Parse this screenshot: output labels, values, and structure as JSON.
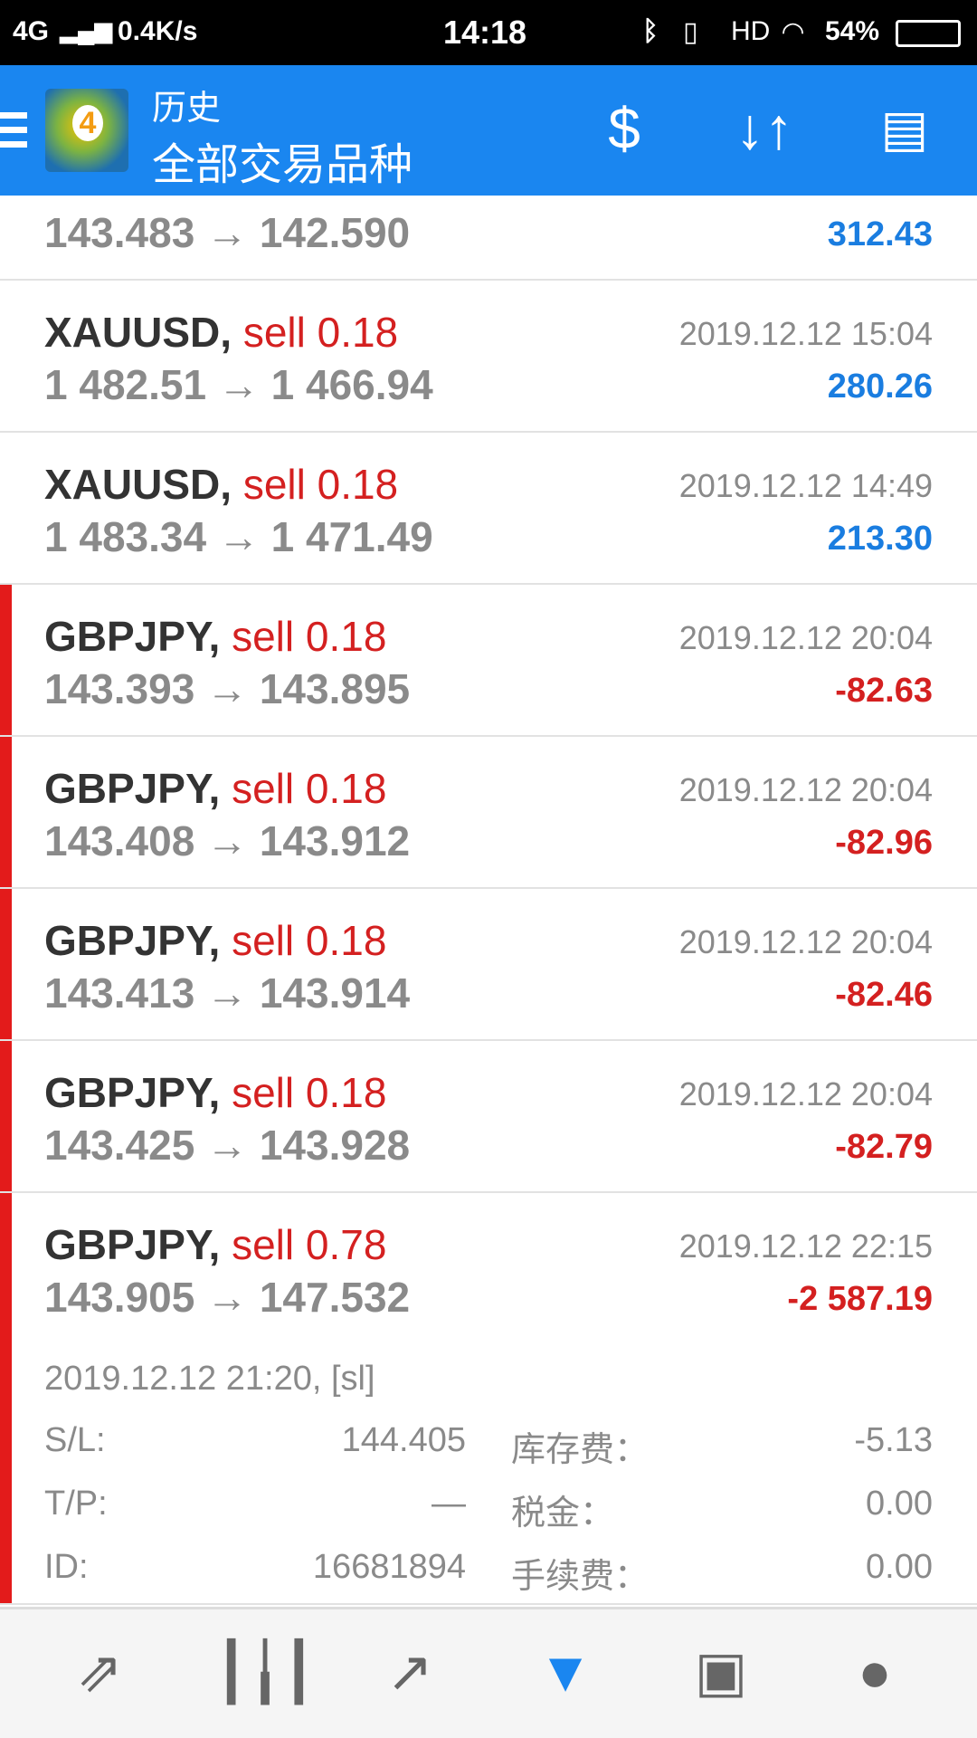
{
  "status_bar": {
    "network": "4G",
    "speed": "0.4K/s",
    "time": "14:18",
    "hd": "HD",
    "battery": "54%"
  },
  "header": {
    "title": "历史",
    "subtitle": "全部交易品种",
    "icons": [
      "menu-icon",
      "mt4-logo",
      "currency-exchange-icon",
      "sort-icon",
      "calendar-icon"
    ]
  },
  "partial_row": {
    "price": "143.483 → 142.590",
    "profit": "312.43"
  },
  "deals": [
    {
      "symbol": "XAUUSD,",
      "type": "sell 0.18",
      "price": "1 482.51 → 1 466.94",
      "date": "2019.12.12 15:04",
      "profit": "280.26",
      "result": "profit"
    },
    {
      "symbol": "XAUUSD,",
      "type": "sell 0.18",
      "price": "1 483.34 → 1 471.49",
      "date": "2019.12.12 14:49",
      "profit": "213.30",
      "result": "profit"
    },
    {
      "symbol": "GBPJPY,",
      "type": "sell 0.18",
      "price": "143.393 → 143.895",
      "date": "2019.12.12 20:04",
      "profit": "-82.63",
      "result": "loss"
    },
    {
      "symbol": "GBPJPY,",
      "type": "sell 0.18",
      "price": "143.408 → 143.912",
      "date": "2019.12.12 20:04",
      "profit": "-82.96",
      "result": "loss"
    },
    {
      "symbol": "GBPJPY,",
      "type": "sell 0.18",
      "price": "143.413 → 143.914",
      "date": "2019.12.12 20:04",
      "profit": "-82.46",
      "result": "loss"
    },
    {
      "symbol": "GBPJPY,",
      "type": "sell 0.18",
      "price": "143.425 → 143.928",
      "date": "2019.12.12 20:04",
      "profit": "-82.79",
      "result": "loss"
    },
    {
      "symbol": "GBPJPY,",
      "type": "sell 0.78",
      "price": "143.905 → 147.532",
      "date": "2019.12.12 22:15",
      "profit": "-2 587.19",
      "result": "loss"
    }
  ],
  "expanded": {
    "open_info": "2019.12.12 21:20, [sl]",
    "sl_label": "S/L:",
    "sl": "144.405",
    "tp_label": "T/P:",
    "tp": "—",
    "id_label": "ID:",
    "id": "16681894",
    "swap_label": "库存费：",
    "swap": "-5.13",
    "tax_label": "税金：",
    "tax": "0.00",
    "commission_label": "手续费：",
    "commission": "0.00"
  },
  "bottom_nav": {
    "items": [
      "trade-icon",
      "chart-icon",
      "trend-icon",
      "history-icon",
      "news-icon",
      "chat-icon"
    ],
    "active": "history-icon"
  },
  "colors": {
    "header": "#1a86f0",
    "profit": "#1a7de0",
    "loss": "#d42020"
  }
}
